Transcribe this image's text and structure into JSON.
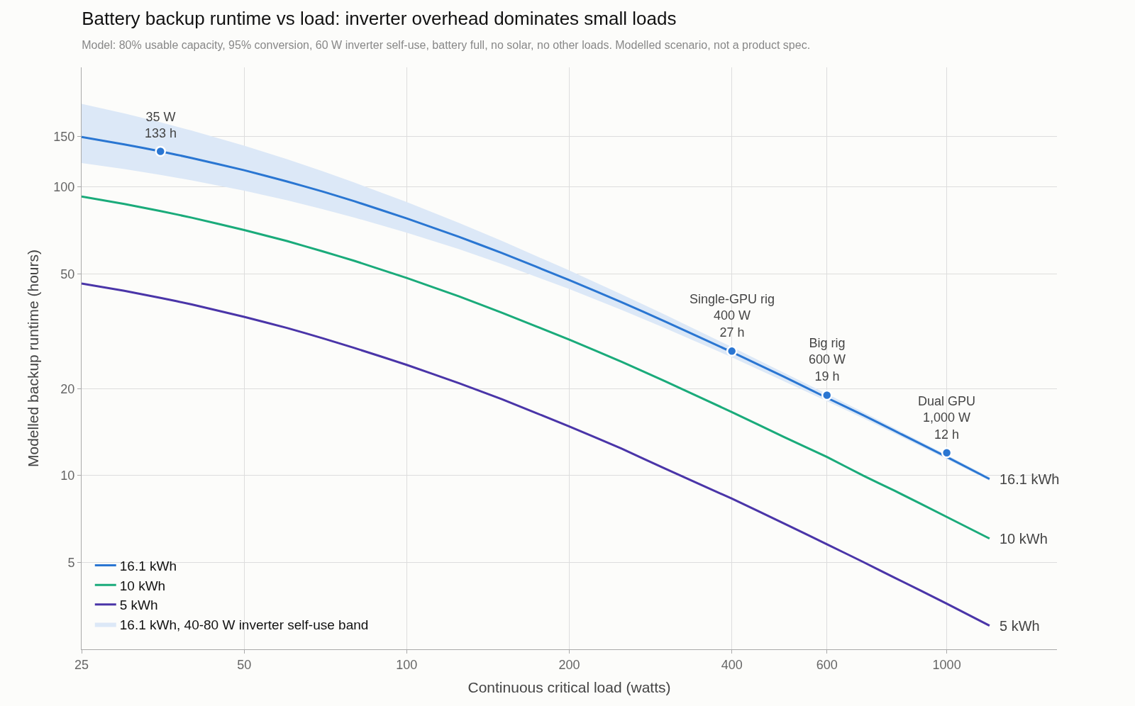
{
  "chart_data": {
    "type": "line",
    "title": "Battery backup runtime vs load: inverter overhead dominates small loads",
    "subtitle": "Model: 80% usable capacity, 95% conversion, 60 W inverter self-use, battery full, no solar, no other loads. Modelled scenario, not a product spec.",
    "xlabel": "Continuous critical load (watts)",
    "ylabel": "Modelled backup runtime (hours)",
    "x": [
      25,
      30,
      35,
      40,
      50,
      60,
      70,
      80,
      100,
      125,
      150,
      200,
      250,
      300,
      400,
      500,
      600,
      700,
      800,
      1000,
      1200
    ],
    "series": [
      {
        "name": "16.1 kWh, 40-80 W inverter self-use band",
        "type": "area",
        "color": "#dce8f7",
        "values": [
          null,
          null,
          null,
          null,
          null,
          null,
          null,
          null,
          null,
          null,
          null,
          null,
          null,
          null,
          null,
          null,
          null,
          null,
          null,
          null,
          null
        ],
        "lower": [
          121.1,
          115.4,
          110.2,
          105.5,
          97.1,
          90.0,
          83.8,
          78.4,
          69.5,
          60.9,
          54.1,
          44.3,
          37.5,
          32.5,
          25.7,
          21.2,
          18.1,
          15.8,
          14.0,
          11.4,
          9.59
        ],
        "upper": [
          194.2,
          179.9,
          167.6,
          156.9,
          139.1,
          124.9,
          113.3,
          103.7,
          88.7,
          75.1,
          65.1,
          51.4,
          42.5,
          36.2,
          27.9,
          22.7,
          19.2,
          16.6,
          14.6,
          11.8,
          9.88
        ]
      },
      {
        "name": "16.1 kWh",
        "color": "#2a76d2",
        "values": [
          149.2,
          140.6,
          133.0,
          126.1,
          114.4,
          104.6,
          96.4,
          89.3,
          77.9,
          67.2,
          59.1,
          47.6,
          39.9,
          34.3,
          26.8,
          22.0,
          18.6,
          16.2,
          14.3,
          11.6,
          9.73
        ]
      },
      {
        "name": "10 kWh",
        "color": "#1aab7a",
        "values": [
          92.7,
          87.4,
          82.6,
          78.3,
          71.0,
          65.0,
          59.8,
          55.5,
          48.4,
          41.8,
          36.7,
          29.6,
          24.8,
          21.3,
          16.6,
          13.6,
          11.6,
          10.0,
          8.87,
          7.19,
          6.05
        ]
      },
      {
        "name": "5 kWh",
        "color": "#4a35a8",
        "values": [
          46.3,
          43.7,
          41.3,
          39.2,
          35.5,
          32.5,
          29.9,
          27.7,
          24.2,
          20.9,
          18.4,
          14.8,
          12.4,
          10.6,
          8.32,
          6.82,
          5.78,
          5.02,
          4.43,
          3.6,
          3.02
        ]
      },
      {
        "type": "scatter",
        "color": "#2a76d2",
        "x": [
          35,
          400,
          600,
          1000
        ],
        "values": [
          133,
          27,
          19,
          12
        ]
      }
    ],
    "annotations": [
      {
        "text": "35 W\n133 h",
        "x": 35,
        "y": 133
      },
      {
        "text": "Single-GPU rig\n400 W\n27 h",
        "x": 400,
        "y": 27
      },
      {
        "text": "Big rig\n600 W\n19 h",
        "x": 600,
        "y": 19
      },
      {
        "text": "Dual GPU\n1,000 W\n12 h",
        "x": 1000,
        "y": 12
      }
    ],
    "log": "xy",
    "xlim": [
      25,
      1600
    ],
    "ylim": [
      2.5,
      260
    ],
    "xticks": [
      25,
      50,
      100,
      200,
      400,
      600,
      1000
    ],
    "yticks": [
      5,
      10,
      20,
      50,
      100,
      150
    ],
    "grid": true,
    "legend": "bottom left"
  }
}
